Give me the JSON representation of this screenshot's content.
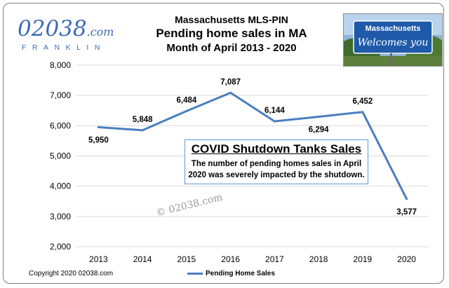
{
  "header": {
    "line1": "Massachusetts MLS-PIN",
    "line2": "Pending home sales in MA",
    "line3": "Month of April 2013 - 2020"
  },
  "logo": {
    "main": "02038",
    "suffix": ".com",
    "sub": "FRANKLIN"
  },
  "sign": {
    "line1": "Massachusetts",
    "line2": "Welcomes you"
  },
  "annotation": {
    "title": "COVID Shutdown Tanks Sales",
    "body": "The number of pending homes sales in April 2020 was severely impacted by the shutdown."
  },
  "watermark": "© 02038.com",
  "copyright": "Copyright 2020 02038.com",
  "colors": {
    "line": "#4a7fc1",
    "accent": "#3d6bb3",
    "box_border": "#5b9bd5",
    "grid": "#d9d9d9"
  },
  "chart_data": {
    "type": "line",
    "categories": [
      "2013",
      "2014",
      "2015",
      "2016",
      "2017",
      "2018",
      "2019",
      "2020"
    ],
    "series": [
      {
        "name": "Pending Home Sales",
        "values": [
          5950,
          5848,
          6484,
          7087,
          6144,
          6294,
          6452,
          3577
        ]
      }
    ],
    "data_labels": [
      "5,950",
      "5,848",
      "6,484",
      "7,087",
      "6,144",
      "6,294",
      "6,452",
      "3,577"
    ],
    "yticks": [
      "2,000",
      "3,000",
      "4,000",
      "5,000",
      "6,000",
      "7,000",
      "8,000"
    ],
    "ylim": [
      2000,
      8000
    ],
    "grid": true,
    "legend": "bottom"
  }
}
